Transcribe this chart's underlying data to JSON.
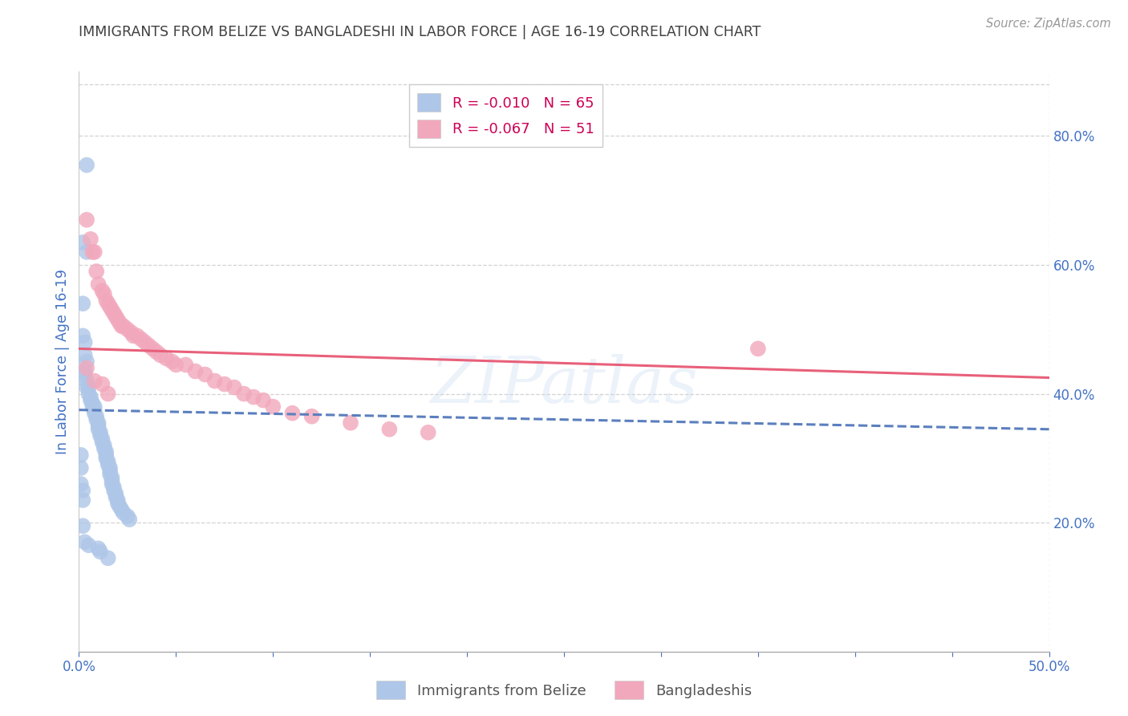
{
  "title": "IMMIGRANTS FROM BELIZE VS BANGLADESHI IN LABOR FORCE | AGE 16-19 CORRELATION CHART",
  "source": "Source: ZipAtlas.com",
  "ylabel": "In Labor Force | Age 16-19",
  "xlim": [
    0.0,
    0.5
  ],
  "ylim": [
    0.0,
    0.9
  ],
  "xtick_positions": [
    0.0,
    0.05,
    0.1,
    0.15,
    0.2,
    0.25,
    0.3,
    0.35,
    0.4,
    0.45,
    0.5
  ],
  "xtick_labels_show": {
    "0.0": "0.0%",
    "0.50": "50.0%"
  },
  "yticks_right": [
    0.0,
    0.2,
    0.4,
    0.6,
    0.8
  ],
  "yticklabels_right": [
    "",
    "20.0%",
    "40.0%",
    "60.0%",
    "80.0%"
  ],
  "belize_R": -0.01,
  "belize_N": 65,
  "bangladeshi_R": -0.067,
  "bangladeshi_N": 51,
  "belize_color": "#aec6e8",
  "belize_line_color": "#5b7fbe",
  "bangladeshi_color": "#f2a8bc",
  "bangladeshi_line_color": "#e8607a",
  "legend_label_belize": "Immigrants from Belize",
  "legend_label_bangladeshi": "Bangladeshis",
  "watermark": "ZIPatlas",
  "background_color": "#ffffff",
  "grid_color": "#c8c8c8",
  "title_color": "#404040",
  "axis_label_color": "#4472c4",
  "belize_trend_x0": 0.0,
  "belize_trend_y0": 0.375,
  "belize_trend_x1": 0.5,
  "belize_trend_y1": 0.345,
  "bangladeshi_trend_x0": 0.0,
  "bangladeshi_trend_y0": 0.47,
  "bangladeshi_trend_x1": 0.5,
  "bangladeshi_trend_y1": 0.425,
  "belize_points_x": [
    0.004,
    0.002,
    0.004,
    0.002,
    0.002,
    0.003,
    0.003,
    0.004,
    0.003,
    0.003,
    0.004,
    0.004,
    0.005,
    0.005,
    0.006,
    0.006,
    0.007,
    0.007,
    0.008,
    0.008,
    0.008,
    0.009,
    0.009,
    0.01,
    0.01,
    0.01,
    0.011,
    0.011,
    0.012,
    0.012,
    0.013,
    0.013,
    0.014,
    0.014,
    0.014,
    0.015,
    0.015,
    0.016,
    0.016,
    0.016,
    0.017,
    0.017,
    0.017,
    0.018,
    0.018,
    0.019,
    0.019,
    0.02,
    0.02,
    0.021,
    0.022,
    0.023,
    0.025,
    0.026,
    0.001,
    0.001,
    0.001,
    0.002,
    0.002,
    0.002,
    0.003,
    0.005,
    0.01,
    0.011,
    0.015
  ],
  "belize_points_y": [
    0.755,
    0.635,
    0.62,
    0.54,
    0.49,
    0.48,
    0.46,
    0.45,
    0.435,
    0.43,
    0.42,
    0.41,
    0.41,
    0.4,
    0.395,
    0.39,
    0.385,
    0.38,
    0.38,
    0.375,
    0.37,
    0.365,
    0.36,
    0.355,
    0.35,
    0.345,
    0.34,
    0.335,
    0.33,
    0.325,
    0.32,
    0.315,
    0.31,
    0.305,
    0.3,
    0.295,
    0.29,
    0.285,
    0.28,
    0.275,
    0.27,
    0.265,
    0.26,
    0.255,
    0.25,
    0.245,
    0.24,
    0.235,
    0.23,
    0.225,
    0.22,
    0.215,
    0.21,
    0.205,
    0.305,
    0.285,
    0.26,
    0.25,
    0.235,
    0.195,
    0.17,
    0.165,
    0.16,
    0.155,
    0.145
  ],
  "bangladeshi_points_x": [
    0.004,
    0.006,
    0.007,
    0.008,
    0.009,
    0.01,
    0.012,
    0.013,
    0.014,
    0.015,
    0.016,
    0.017,
    0.018,
    0.019,
    0.02,
    0.021,
    0.022,
    0.023,
    0.025,
    0.027,
    0.028,
    0.03,
    0.032,
    0.034,
    0.036,
    0.038,
    0.04,
    0.042,
    0.045,
    0.048,
    0.05,
    0.055,
    0.06,
    0.065,
    0.07,
    0.075,
    0.08,
    0.085,
    0.09,
    0.095,
    0.1,
    0.11,
    0.12,
    0.14,
    0.16,
    0.18,
    0.004,
    0.008,
    0.012,
    0.015,
    0.35
  ],
  "bangladeshi_points_y": [
    0.67,
    0.64,
    0.62,
    0.62,
    0.59,
    0.57,
    0.56,
    0.555,
    0.545,
    0.54,
    0.535,
    0.53,
    0.525,
    0.52,
    0.515,
    0.51,
    0.505,
    0.505,
    0.5,
    0.495,
    0.49,
    0.49,
    0.485,
    0.48,
    0.475,
    0.47,
    0.465,
    0.46,
    0.455,
    0.45,
    0.445,
    0.445,
    0.435,
    0.43,
    0.42,
    0.415,
    0.41,
    0.4,
    0.395,
    0.39,
    0.38,
    0.37,
    0.365,
    0.355,
    0.345,
    0.34,
    0.44,
    0.42,
    0.415,
    0.4,
    0.47
  ]
}
